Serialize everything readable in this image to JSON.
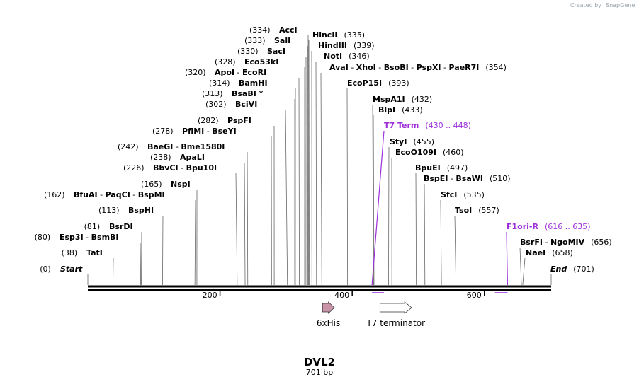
{
  "credit": "Created by",
  "credit_brand": "SnapGene",
  "sequence": {
    "name": "DVL2",
    "length_label": "701 bp",
    "length": 701
  },
  "ticks": [
    {
      "pos": 200,
      "label": "200"
    },
    {
      "pos": 400,
      "label": "400"
    },
    {
      "pos": 600,
      "label": "600"
    }
  ],
  "sites": [
    {
      "pos_label": "(0)",
      "names": [
        "Start"
      ],
      "pos": 0,
      "kind": "start"
    },
    {
      "pos_label": "(38)",
      "names": [
        "TatI"
      ],
      "pos": 38
    },
    {
      "pos_label": "(80)",
      "names": [
        "Esp3I",
        "BsmBI"
      ],
      "pos": 80
    },
    {
      "pos_label": "(81)",
      "names": [
        "BsrDI"
      ],
      "pos": 81
    },
    {
      "pos_label": "(113)",
      "names": [
        "BspHI"
      ],
      "pos": 113
    },
    {
      "pos_label": "(162)",
      "names": [
        "BfuAI",
        "PaqCI",
        "BspMI"
      ],
      "pos": 162
    },
    {
      "pos_label": "(165)",
      "names": [
        "NspI"
      ],
      "pos": 165
    },
    {
      "pos_label": "(226)",
      "names": [
        "BbvCI",
        "Bpu10I"
      ],
      "pos": 226
    },
    {
      "pos_label": "(238)",
      "names": [
        "ApaLI"
      ],
      "pos": 238
    },
    {
      "pos_label": "(242)",
      "names": [
        "BaeGI",
        "Bme1580I"
      ],
      "pos": 242
    },
    {
      "pos_label": "(278)",
      "names": [
        "PflMI",
        "BseYI"
      ],
      "pos": 278
    },
    {
      "pos_label": "(282)",
      "names": [
        "PspFI"
      ],
      "pos": 282
    },
    {
      "pos_label": "(302)",
      "names": [
        "BciVI"
      ],
      "pos": 302
    },
    {
      "pos_label": "(313)",
      "names": [
        "BsaBI *"
      ],
      "pos": 313
    },
    {
      "pos_label": "(314)",
      "names": [
        "BamHI"
      ],
      "pos": 314
    },
    {
      "pos_label": "(320)",
      "names": [
        "ApoI",
        "EcoRI"
      ],
      "pos": 320
    },
    {
      "pos_label": "(328)",
      "names": [
        "Eco53kI"
      ],
      "pos": 328
    },
    {
      "pos_label": "(330)",
      "names": [
        "SacI"
      ],
      "pos": 330
    },
    {
      "pos_label": "(333)",
      "names": [
        "SalI"
      ],
      "pos": 333
    },
    {
      "pos_label": "(334)",
      "names": [
        "AccI"
      ],
      "pos": 334
    },
    {
      "pos_label": "(335)",
      "names": [
        "HincII"
      ],
      "pos": 335,
      "side": "right"
    },
    {
      "pos_label": "(339)",
      "names": [
        "HindIII"
      ],
      "pos": 339,
      "side": "right"
    },
    {
      "pos_label": "(346)",
      "names": [
        "NotI"
      ],
      "pos": 346,
      "side": "right"
    },
    {
      "pos_label": "(354)",
      "names": [
        "AvaI",
        "XhoI",
        "BsoBI",
        "PspXI",
        "PaeR7I"
      ],
      "pos": 354,
      "side": "right"
    },
    {
      "pos_label": "(393)",
      "names": [
        "EcoP15I"
      ],
      "pos": 393,
      "side": "right"
    },
    {
      "pos_label": "(432)",
      "names": [
        "MspA1I"
      ],
      "pos": 432,
      "side": "right"
    },
    {
      "pos_label": "(433)",
      "names": [
        "BlpI"
      ],
      "pos": 433,
      "side": "right"
    },
    {
      "pos_label": "(430 .. 448)",
      "names": [
        "T7 Term"
      ],
      "pos": 430,
      "side": "right",
      "kind": "primer",
      "end": 448
    },
    {
      "pos_label": "(455)",
      "names": [
        "StyI"
      ],
      "pos": 455,
      "side": "right"
    },
    {
      "pos_label": "(460)",
      "names": [
        "EcoO109I"
      ],
      "pos": 460,
      "side": "right"
    },
    {
      "pos_label": "(497)",
      "names": [
        "BpuEI"
      ],
      "pos": 497,
      "side": "right"
    },
    {
      "pos_label": "(510)",
      "names": [
        "BspEI",
        "BsaWI"
      ],
      "pos": 510,
      "side": "right"
    },
    {
      "pos_label": "(535)",
      "names": [
        "SfcI"
      ],
      "pos": 535,
      "side": "right"
    },
    {
      "pos_label": "(557)",
      "names": [
        "TsoI"
      ],
      "pos": 557,
      "side": "right"
    },
    {
      "pos_label": "(616 .. 635)",
      "names": [
        "F1ori-R"
      ],
      "pos": 635,
      "side": "right",
      "kind": "primer",
      "start": 616
    },
    {
      "pos_label": "(656)",
      "names": [
        "BsrFI",
        "NgoMIV"
      ],
      "pos": 656,
      "side": "right"
    },
    {
      "pos_label": "(658)",
      "names": [
        "NaeI"
      ],
      "pos": 658,
      "side": "right"
    },
    {
      "pos_label": "(701)",
      "names": [
        "End"
      ],
      "pos": 701,
      "side": "right",
      "kind": "end"
    }
  ],
  "features": [
    {
      "name": "6xHis",
      "start": 355,
      "end": 373,
      "color": "#c994a8"
    },
    {
      "name": "T7 terminator",
      "start": 442,
      "end": 490,
      "color": "#ffffff"
    }
  ],
  "colors": {
    "primer": "#9b30d9",
    "backbone": "#000000",
    "site_line": "#666666"
  }
}
